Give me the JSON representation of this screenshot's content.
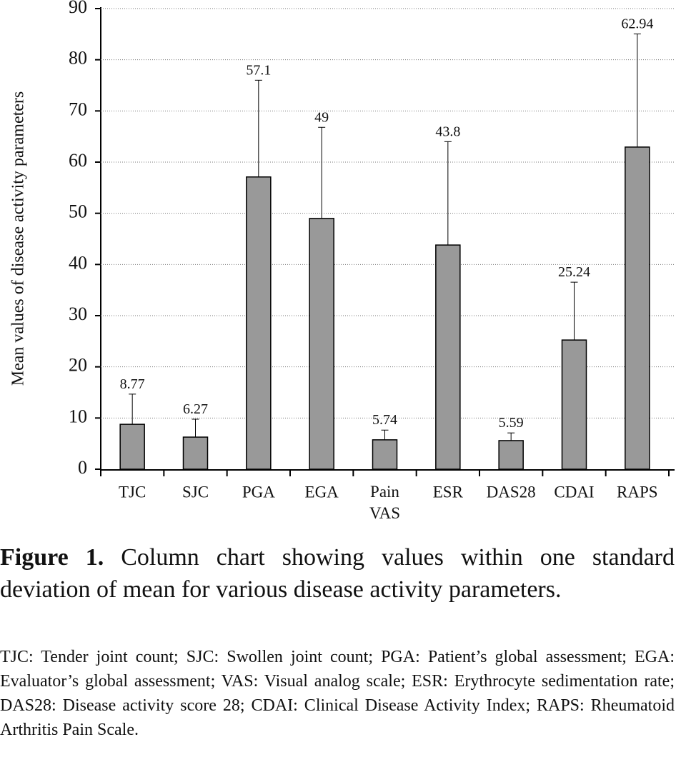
{
  "chart_data": {
    "type": "bar",
    "ylabel": "Mean values of disease activity parameters",
    "categories": [
      "TJC",
      "SJC",
      "PGA",
      "EGA",
      "Pain VAS",
      "ESR",
      "DAS28",
      "CDAI",
      "RAPS"
    ],
    "values": [
      8.77,
      6.27,
      57.1,
      49,
      5.74,
      43.8,
      5.59,
      25.24,
      62.94
    ],
    "errors": [
      5.9,
      3.5,
      18.9,
      17.8,
      1.9,
      20.2,
      1.5,
      11.3,
      22.1
    ],
    "color": "#999999",
    "ylim": [
      0,
      90
    ],
    "yticks": [
      0,
      10,
      20,
      30,
      40,
      50,
      60,
      70,
      80,
      90
    ],
    "grid": true
  },
  "caption": {
    "label": "Figure 1.",
    "text": "Column chart showing values within one standard deviation of mean for various disease activity parameters."
  },
  "footnote": "TJC: Tender joint count; SJC: Swollen joint count; PGA: Patient’s global assessment; EGA: Evaluator’s global assessment; VAS: Visual analog scale; ESR: Erythrocyte sedimentation rate; DAS28: Disease activity score 28; CDAI: Clinical Disease Activity Index; RAPS: Rheumatoid Arthritis Pain Scale."
}
